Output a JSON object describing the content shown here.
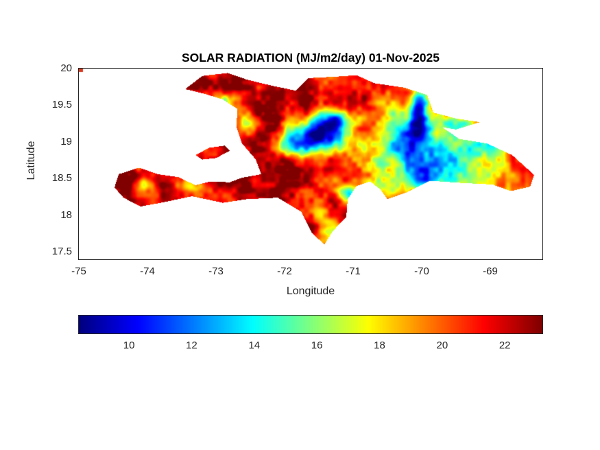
{
  "colors": {
    "background": "#ffffff",
    "axis": "#262626",
    "title_text": "#000000"
  },
  "chart_data": {
    "type": "heatmap",
    "title": "SOLAR RADIATION (MJ/m2/day) 01-Nov-2025",
    "xlabel": "Longitude",
    "ylabel": "Latitude",
    "units": "MJ/m2/day",
    "date": "01-Nov-2025",
    "xlim": [
      -75.0,
      -68.24
    ],
    "ylim": [
      17.4,
      20.0
    ],
    "xticks": [
      -75,
      -74,
      -73,
      -72,
      -71,
      -70,
      -69
    ],
    "xtick_labels": [
      "-75",
      "-74",
      "-73",
      "-72",
      "-71",
      "-70",
      "-69"
    ],
    "yticks": [
      17.5,
      18,
      18.5,
      19,
      19.5,
      20
    ],
    "ytick_labels": [
      "17.5",
      "18",
      "18.5",
      "19",
      "19.5",
      "20"
    ],
    "grid": false,
    "colorbar": {
      "orientation": "horizontal",
      "colormap": "jet",
      "range": [
        8.4,
        23.2
      ],
      "ticks": [
        10,
        12,
        14,
        16,
        18,
        20,
        22
      ],
      "tick_labels": [
        "10",
        "12",
        "14",
        "16",
        "18",
        "20",
        "22"
      ]
    },
    "regions": {
      "hispaniola": [
        [
          -73.45,
          19.72
        ],
        [
          -73.2,
          19.9
        ],
        [
          -72.83,
          19.94
        ],
        [
          -72.55,
          19.85
        ],
        [
          -72.2,
          19.77
        ],
        [
          -71.84,
          19.7
        ],
        [
          -71.65,
          19.87
        ],
        [
          -71.25,
          19.89
        ],
        [
          -70.95,
          19.91
        ],
        [
          -70.69,
          19.8
        ],
        [
          -70.25,
          19.74
        ],
        [
          -69.92,
          19.64
        ],
        [
          -69.83,
          19.4
        ],
        [
          -69.5,
          19.32
        ],
        [
          -69.15,
          19.27
        ],
        [
          -69.5,
          19.17
        ],
        [
          -69.7,
          19.2
        ],
        [
          -69.45,
          19.04
        ],
        [
          -69.05,
          18.98
        ],
        [
          -68.68,
          18.82
        ],
        [
          -68.36,
          18.55
        ],
        [
          -68.42,
          18.39
        ],
        [
          -68.7,
          18.33
        ],
        [
          -68.97,
          18.42
        ],
        [
          -69.4,
          18.44
        ],
        [
          -69.88,
          18.47
        ],
        [
          -70.2,
          18.32
        ],
        [
          -70.5,
          18.22
        ],
        [
          -70.6,
          18.35
        ],
        [
          -70.75,
          18.46
        ],
        [
          -70.95,
          18.4
        ],
        [
          -71.08,
          18.22
        ],
        [
          -71.1,
          17.98
        ],
        [
          -71.3,
          17.78
        ],
        [
          -71.42,
          17.6
        ],
        [
          -71.6,
          17.76
        ],
        [
          -71.7,
          17.94
        ],
        [
          -71.76,
          18.05
        ],
        [
          -72.1,
          18.24
        ],
        [
          -72.55,
          18.22
        ],
        [
          -72.9,
          18.17
        ],
        [
          -73.35,
          18.26
        ],
        [
          -73.75,
          18.18
        ],
        [
          -74.1,
          18.12
        ],
        [
          -74.35,
          18.24
        ],
        [
          -74.48,
          18.38
        ],
        [
          -74.42,
          18.56
        ],
        [
          -74.12,
          18.65
        ],
        [
          -73.85,
          18.56
        ],
        [
          -73.55,
          18.52
        ],
        [
          -73.3,
          18.41
        ],
        [
          -73.09,
          18.46
        ],
        [
          -72.8,
          18.45
        ],
        [
          -72.63,
          18.51
        ],
        [
          -72.34,
          18.56
        ],
        [
          -72.42,
          18.76
        ],
        [
          -72.62,
          18.98
        ],
        [
          -72.7,
          19.2
        ],
        [
          -72.69,
          19.45
        ],
        [
          -72.9,
          19.58
        ],
        [
          -73.18,
          19.66
        ]
      ],
      "gonave": [
        [
          -73.3,
          18.82
        ],
        [
          -73.1,
          18.92
        ],
        [
          -72.87,
          18.95
        ],
        [
          -72.8,
          18.88
        ],
        [
          -73.0,
          18.78
        ],
        [
          -73.2,
          18.76
        ]
      ]
    },
    "field": {
      "base": 21.2,
      "blobs": [
        {
          "lon": -71.52,
          "lat": 19.08,
          "sx": 0.3,
          "sy": 0.16,
          "amp": -11.5
        },
        {
          "lon": -71.25,
          "lat": 19.3,
          "sx": 0.18,
          "sy": 0.1,
          "amp": -7.0
        },
        {
          "lon": -71.85,
          "lat": 18.95,
          "sx": 0.25,
          "sy": 0.12,
          "amp": -5.5
        },
        {
          "lon": -70.05,
          "lat": 19.42,
          "sx": 0.1,
          "sy": 0.22,
          "amp": -9.5
        },
        {
          "lon": -70.25,
          "lat": 19.0,
          "sx": 0.35,
          "sy": 0.35,
          "amp": -6.5
        },
        {
          "lon": -69.8,
          "lat": 18.75,
          "sx": 0.4,
          "sy": 0.3,
          "amp": -5.5
        },
        {
          "lon": -69.15,
          "lat": 18.72,
          "sx": 0.35,
          "sy": 0.3,
          "amp": -3.5
        },
        {
          "lon": -70.65,
          "lat": 18.38,
          "sx": 0.25,
          "sy": 0.12,
          "amp": -5.0
        },
        {
          "lon": -71.32,
          "lat": 17.78,
          "sx": 0.12,
          "sy": 0.16,
          "amp": -6.0
        },
        {
          "lon": -74.05,
          "lat": 18.42,
          "sx": 0.1,
          "sy": 0.07,
          "amp": -6.5
        },
        {
          "lon": -73.35,
          "lat": 18.4,
          "sx": 0.14,
          "sy": 0.06,
          "amp": -4.5
        },
        {
          "lon": -72.9,
          "lat": 19.52,
          "sx": 0.12,
          "sy": 0.08,
          "amp": -4.5
        },
        {
          "lon": -72.5,
          "lat": 19.25,
          "sx": 0.15,
          "sy": 0.1,
          "amp": -4.0
        },
        {
          "lon": -69.5,
          "lat": 19.26,
          "sx": 0.2,
          "sy": 0.08,
          "amp": -5.0
        },
        {
          "lon": -70.0,
          "lat": 18.55,
          "sx": 0.2,
          "sy": 0.15,
          "amp": -4.0
        },
        {
          "lon": -71.1,
          "lat": 18.3,
          "sx": 0.12,
          "sy": 0.08,
          "amp": -5.0
        },
        {
          "lon": -69.0,
          "lat": 19.05,
          "sx": 0.15,
          "sy": 0.1,
          "amp": -4.0
        },
        {
          "lon": -72.2,
          "lat": 18.62,
          "sx": 0.45,
          "sy": 0.25,
          "amp": 1.6
        },
        {
          "lon": -73.6,
          "lat": 18.3,
          "sx": 0.7,
          "sy": 0.15,
          "amp": 1.4
        },
        {
          "lon": -72.0,
          "lat": 19.55,
          "sx": 0.45,
          "sy": 0.25,
          "amp": 1.3
        },
        {
          "lon": -73.1,
          "lat": 19.8,
          "sx": 0.3,
          "sy": 0.12,
          "amp": 1.3
        },
        {
          "lon": -72.1,
          "lat": 18.95,
          "sx": 0.3,
          "sy": 0.3,
          "amp": 1.5
        },
        {
          "lon": -74.3,
          "lat": 18.45,
          "sx": 0.2,
          "sy": 0.15,
          "amp": 1.5
        }
      ],
      "noise": {
        "scale1": 0.22,
        "amp1": 1.9,
        "scale2": 0.07,
        "amp2": 1.2
      }
    },
    "artifact": {
      "x": 0,
      "y": 0,
      "w": 6,
      "h": 5,
      "color": "#d93a21"
    }
  }
}
